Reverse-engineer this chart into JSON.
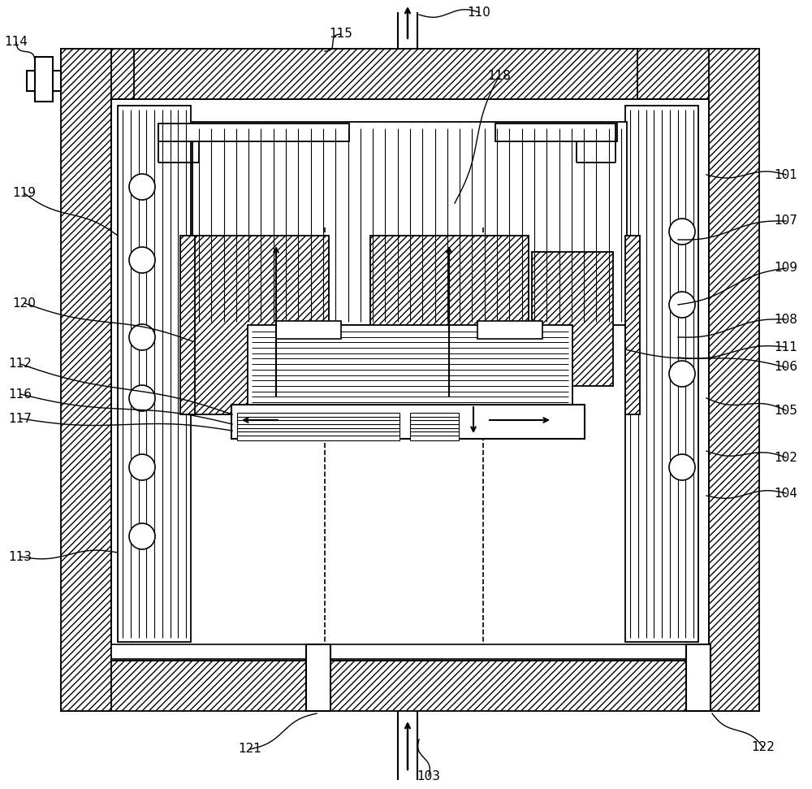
{
  "bg_color": "#ffffff",
  "fig_width": 10.0,
  "fig_height": 9.71,
  "dpi": 100
}
